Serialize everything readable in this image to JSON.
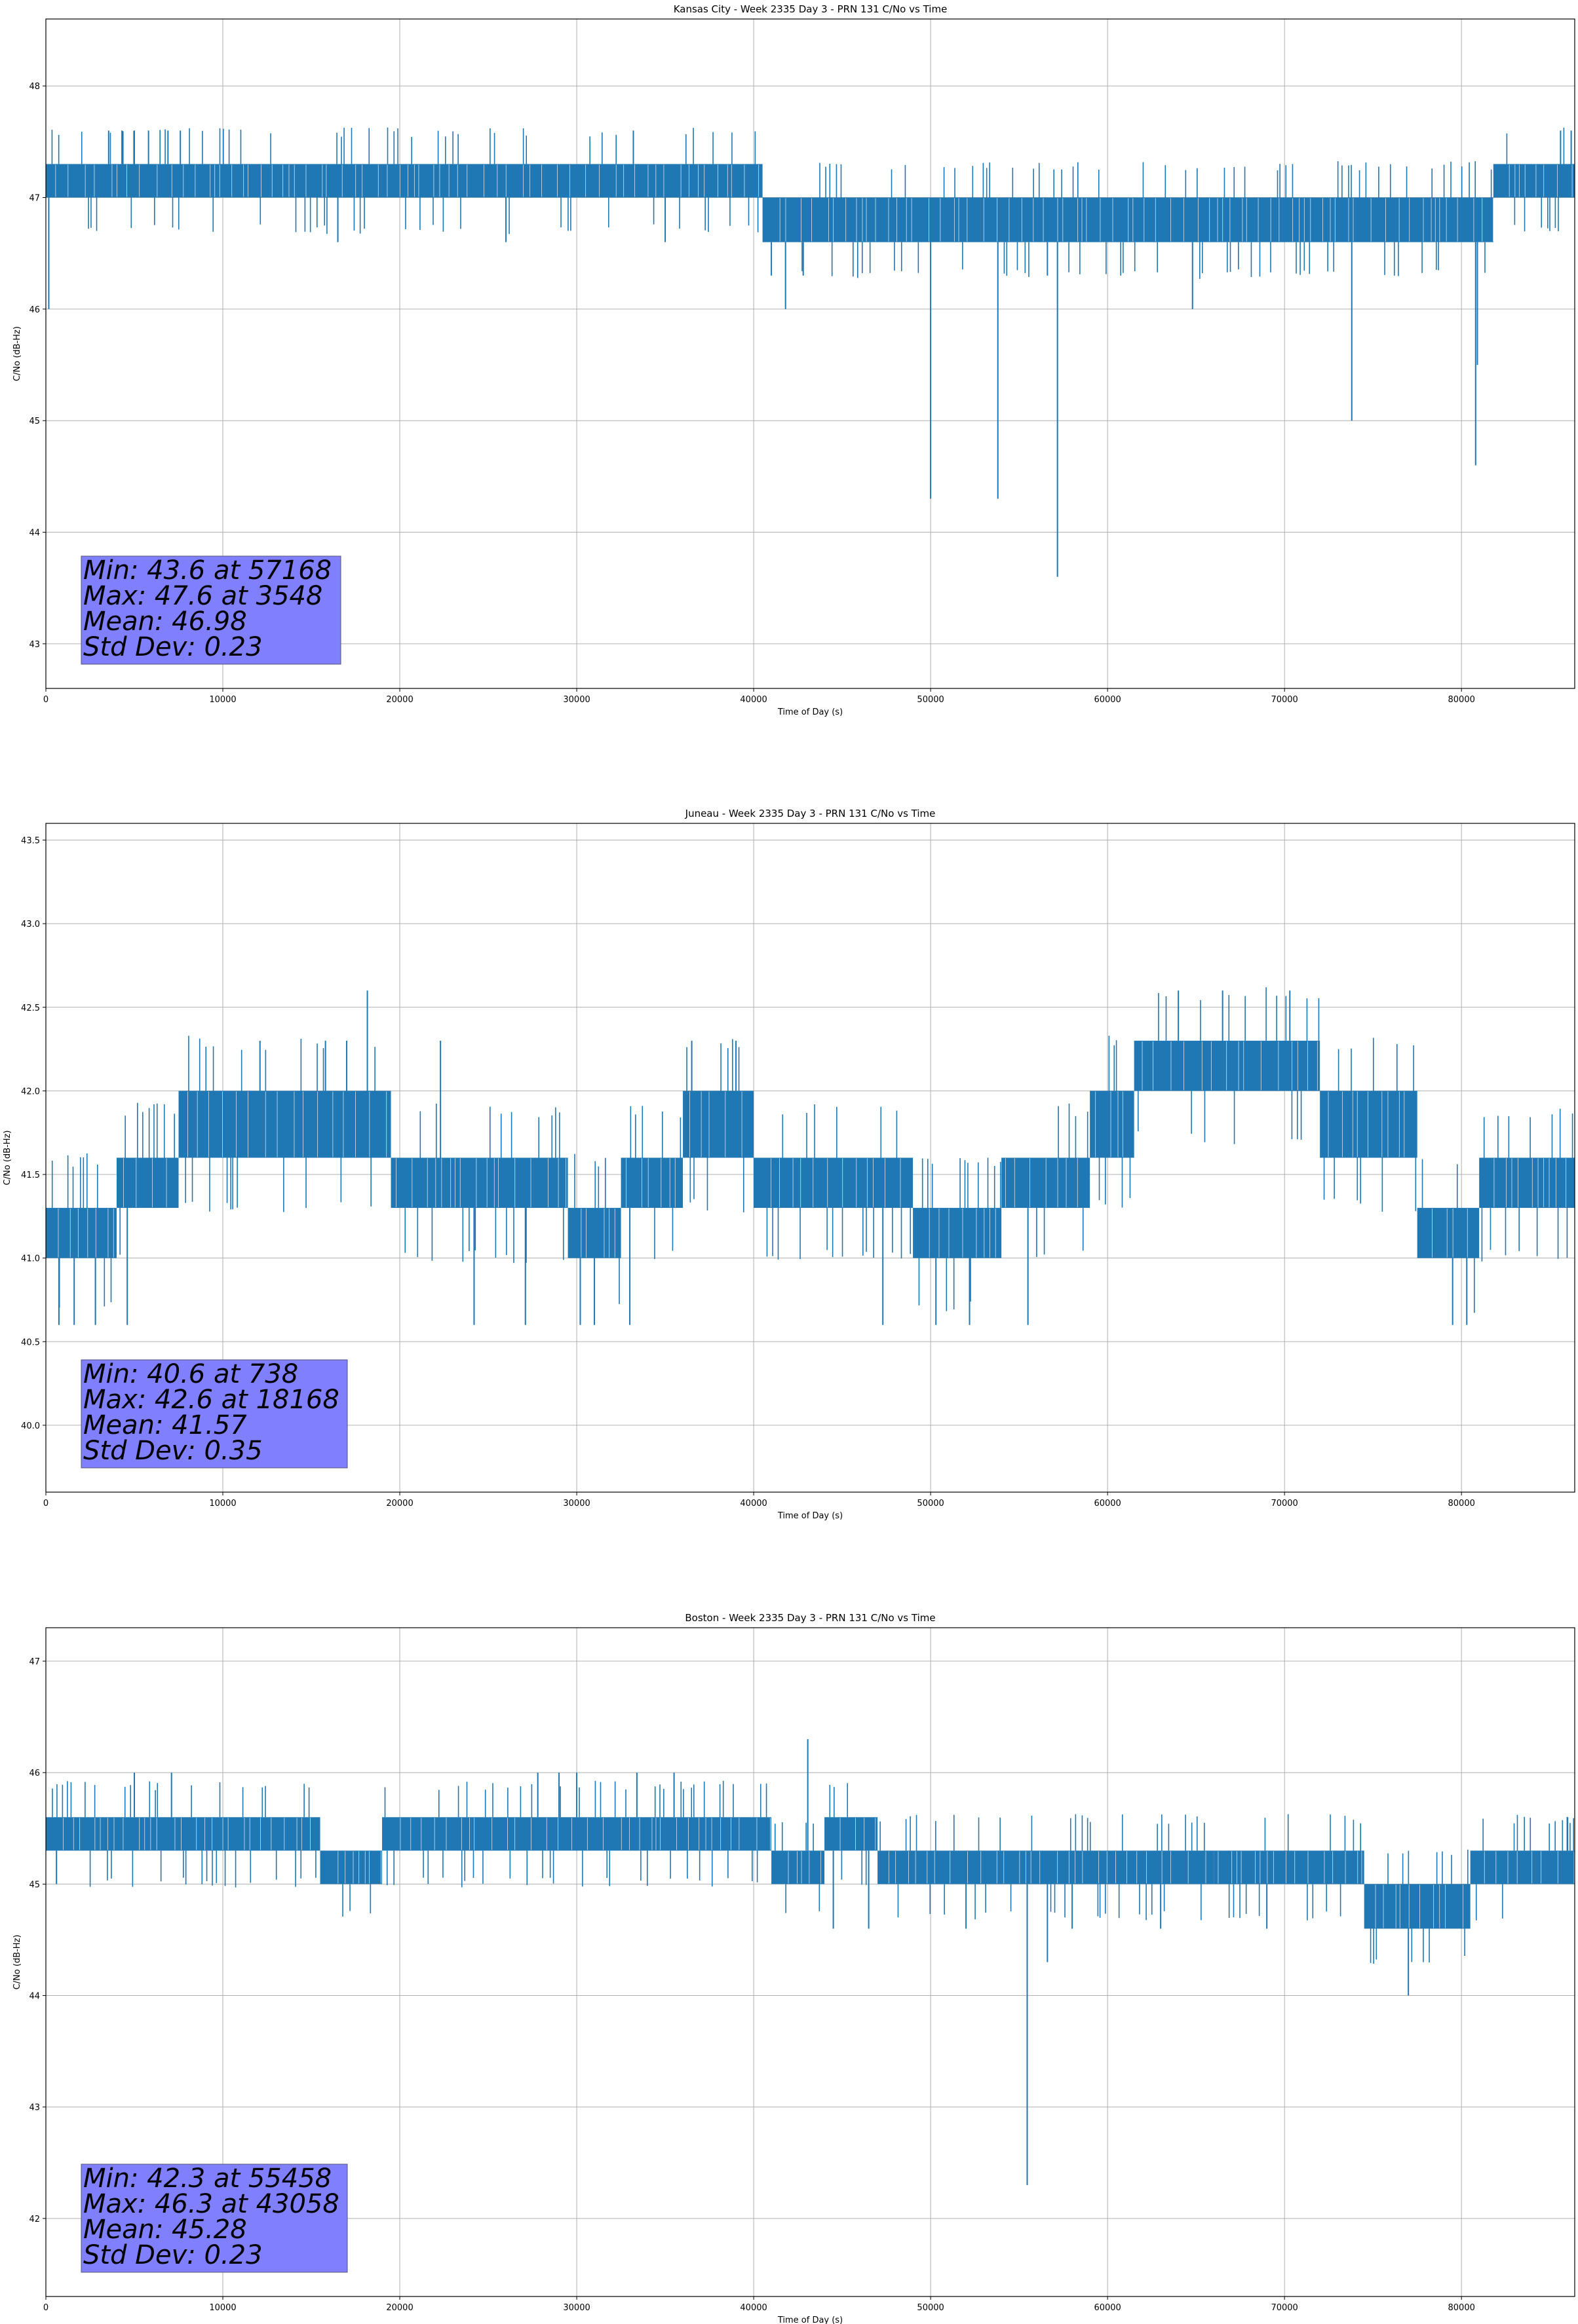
{
  "colors": {
    "series": "#1f77b4",
    "stats_box": "#8080ff",
    "grid": "#b0b0b0"
  },
  "chart_data": [
    {
      "type": "line",
      "title": "Kansas City - Week 2335 Day 3 - PRN 131 C/No vs Time",
      "xlabel": "Time of Day (s)",
      "ylabel": "C/No (dB-Hz)",
      "xlim": [
        0,
        86400
      ],
      "ylim": [
        42.6,
        48.6
      ],
      "xticks": [
        0,
        10000,
        20000,
        30000,
        40000,
        50000,
        60000,
        70000,
        80000
      ],
      "xtick_labels": [
        "0",
        "10000",
        "20000",
        "30000",
        "40000",
        "50000",
        "60000",
        "70000",
        "80000"
      ],
      "yticks": [
        43,
        44,
        45,
        46,
        47,
        48
      ],
      "ytick_labels": [
        "43",
        "44",
        "45",
        "46",
        "47",
        "48"
      ],
      "grid": true,
      "band_segments": [
        {
          "x0": 0,
          "x1": 40500,
          "lo": 47.0,
          "hi": 47.3
        },
        {
          "x0": 40500,
          "x1": 81800,
          "lo": 46.6,
          "hi": 47.0
        },
        {
          "x0": 81800,
          "x1": 86400,
          "lo": 47.0,
          "hi": 47.3
        }
      ],
      "spikes": [
        {
          "x": 165,
          "y": 46.0
        },
        {
          "x": 3548,
          "y": 47.6
        },
        {
          "x": 4300,
          "y": 47.6
        },
        {
          "x": 5000,
          "y": 47.6
        },
        {
          "x": 5800,
          "y": 47.6
        },
        {
          "x": 6900,
          "y": 47.6
        },
        {
          "x": 7600,
          "y": 47.6
        },
        {
          "x": 33200,
          "y": 47.6
        },
        {
          "x": 41000,
          "y": 46.3
        },
        {
          "x": 41800,
          "y": 46.0
        },
        {
          "x": 42800,
          "y": 46.3
        },
        {
          "x": 50000,
          "y": 44.3
        },
        {
          "x": 53800,
          "y": 44.3
        },
        {
          "x": 57168,
          "y": 43.6
        },
        {
          "x": 56600,
          "y": 46.3
        },
        {
          "x": 64800,
          "y": 46.0
        },
        {
          "x": 73800,
          "y": 45.0
        },
        {
          "x": 80800,
          "y": 44.6
        },
        {
          "x": 80900,
          "y": 45.5
        },
        {
          "x": 85600,
          "y": 47.6
        },
        {
          "x": 86200,
          "y": 47.6
        },
        {
          "x": 16500,
          "y": 46.6
        },
        {
          "x": 26000,
          "y": 46.6
        },
        {
          "x": 35000,
          "y": 46.6
        }
      ],
      "stats": [
        "Min: 43.6 at 57168",
        "Max: 47.6 at 3548",
        "Mean: 46.98",
        "Std Dev: 0.23"
      ]
    },
    {
      "type": "line",
      "title": "Juneau - Week 2335 Day 3 - PRN 131 C/No vs Time",
      "xlabel": "Time of Day (s)",
      "ylabel": "C/No (dB-Hz)",
      "xlim": [
        0,
        86400
      ],
      "ylim": [
        39.6,
        43.6
      ],
      "xticks": [
        0,
        10000,
        20000,
        30000,
        40000,
        50000,
        60000,
        70000,
        80000
      ],
      "xtick_labels": [
        "0",
        "10000",
        "20000",
        "30000",
        "40000",
        "50000",
        "60000",
        "70000",
        "80000"
      ],
      "yticks": [
        40.0,
        40.5,
        41.0,
        41.5,
        42.0,
        42.5,
        43.0,
        43.5
      ],
      "ytick_labels": [
        "40.0",
        "40.5",
        "41.0",
        "41.5",
        "42.0",
        "42.5",
        "43.0",
        "43.5"
      ],
      "grid": true,
      "band_segments": [
        {
          "x0": 0,
          "x1": 4000,
          "lo": 41.0,
          "hi": 41.3
        },
        {
          "x0": 4000,
          "x1": 7500,
          "lo": 41.3,
          "hi": 41.6
        },
        {
          "x0": 7500,
          "x1": 19500,
          "lo": 41.6,
          "hi": 42.0
        },
        {
          "x0": 19500,
          "x1": 29500,
          "lo": 41.3,
          "hi": 41.6
        },
        {
          "x0": 29500,
          "x1": 32500,
          "lo": 41.0,
          "hi": 41.3
        },
        {
          "x0": 32500,
          "x1": 36000,
          "lo": 41.3,
          "hi": 41.6
        },
        {
          "x0": 36000,
          "x1": 40000,
          "lo": 41.6,
          "hi": 42.0
        },
        {
          "x0": 40000,
          "x1": 49000,
          "lo": 41.3,
          "hi": 41.6
        },
        {
          "x0": 49000,
          "x1": 54000,
          "lo": 41.0,
          "hi": 41.3
        },
        {
          "x0": 54000,
          "x1": 59000,
          "lo": 41.3,
          "hi": 41.6
        },
        {
          "x0": 59000,
          "x1": 61500,
          "lo": 41.6,
          "hi": 42.0
        },
        {
          "x0": 61500,
          "x1": 72000,
          "lo": 42.0,
          "hi": 42.3
        },
        {
          "x0": 72000,
          "x1": 77500,
          "lo": 41.6,
          "hi": 42.0
        },
        {
          "x0": 77500,
          "x1": 81000,
          "lo": 41.0,
          "hi": 41.3
        },
        {
          "x0": 81000,
          "x1": 86400,
          "lo": 41.3,
          "hi": 41.6
        }
      ],
      "spikes": [
        {
          "x": 738,
          "y": 40.6
        },
        {
          "x": 1600,
          "y": 40.6
        },
        {
          "x": 2800,
          "y": 40.6
        },
        {
          "x": 4600,
          "y": 40.6
        },
        {
          "x": 12100,
          "y": 42.3
        },
        {
          "x": 15800,
          "y": 42.3
        },
        {
          "x": 17000,
          "y": 42.3
        },
        {
          "x": 18168,
          "y": 42.6
        },
        {
          "x": 22300,
          "y": 42.3
        },
        {
          "x": 24200,
          "y": 40.6
        },
        {
          "x": 27100,
          "y": 40.6
        },
        {
          "x": 30200,
          "y": 40.6
        },
        {
          "x": 31000,
          "y": 40.6
        },
        {
          "x": 33000,
          "y": 40.6
        },
        {
          "x": 36500,
          "y": 42.3
        },
        {
          "x": 39000,
          "y": 42.3
        },
        {
          "x": 47300,
          "y": 40.6
        },
        {
          "x": 50300,
          "y": 40.6
        },
        {
          "x": 52200,
          "y": 40.6
        },
        {
          "x": 55500,
          "y": 40.6
        },
        {
          "x": 64000,
          "y": 42.6
        },
        {
          "x": 66500,
          "y": 42.6
        },
        {
          "x": 70300,
          "y": 42.6
        },
        {
          "x": 79500,
          "y": 40.6
        },
        {
          "x": 80300,
          "y": 40.6
        }
      ],
      "stats": [
        "Min: 40.6 at 738",
        "Max: 42.6 at 18168",
        "Mean: 41.57",
        "Std Dev: 0.35"
      ]
    },
    {
      "type": "line",
      "title": "Boston - Week 2335 Day 3 - PRN 131 C/No vs Time",
      "xlabel": "Time of Day (s)",
      "ylabel": "C/No (dB-Hz)",
      "xlim": [
        0,
        86400
      ],
      "ylim": [
        41.3,
        47.3
      ],
      "xticks": [
        0,
        10000,
        20000,
        30000,
        40000,
        50000,
        60000,
        70000,
        80000
      ],
      "xtick_labels": [
        "0",
        "10000",
        "20000",
        "30000",
        "40000",
        "50000",
        "60000",
        "70000",
        "80000"
      ],
      "yticks": [
        42,
        43,
        44,
        45,
        46,
        47
      ],
      "ytick_labels": [
        "42",
        "43",
        "44",
        "45",
        "46",
        "47"
      ],
      "grid": true,
      "band_segments": [
        {
          "x0": 0,
          "x1": 15500,
          "lo": 45.3,
          "hi": 45.6
        },
        {
          "x0": 15500,
          "x1": 19000,
          "lo": 45.0,
          "hi": 45.3
        },
        {
          "x0": 19000,
          "x1": 41000,
          "lo": 45.3,
          "hi": 45.6
        },
        {
          "x0": 41000,
          "x1": 44000,
          "lo": 45.0,
          "hi": 45.3
        },
        {
          "x0": 44000,
          "x1": 47000,
          "lo": 45.3,
          "hi": 45.6
        },
        {
          "x0": 47000,
          "x1": 66000,
          "lo": 45.0,
          "hi": 45.3
        },
        {
          "x0": 66000,
          "x1": 74500,
          "lo": 45.0,
          "hi": 45.3
        },
        {
          "x0": 74500,
          "x1": 80500,
          "lo": 44.6,
          "hi": 45.0
        },
        {
          "x0": 80500,
          "x1": 86400,
          "lo": 45.0,
          "hi": 45.3
        }
      ],
      "spikes": [
        {
          "x": 600,
          "y": 45.0
        },
        {
          "x": 5000,
          "y": 46.0
        },
        {
          "x": 7100,
          "y": 46.0
        },
        {
          "x": 27800,
          "y": 46.0
        },
        {
          "x": 29000,
          "y": 46.0
        },
        {
          "x": 30000,
          "y": 46.0
        },
        {
          "x": 33400,
          "y": 46.0
        },
        {
          "x": 35500,
          "y": 46.0
        },
        {
          "x": 43058,
          "y": 46.3
        },
        {
          "x": 44500,
          "y": 44.6
        },
        {
          "x": 46500,
          "y": 44.6
        },
        {
          "x": 55458,
          "y": 42.3
        },
        {
          "x": 56600,
          "y": 44.3
        },
        {
          "x": 52000,
          "y": 44.6
        },
        {
          "x": 58000,
          "y": 44.6
        },
        {
          "x": 63000,
          "y": 44.6
        },
        {
          "x": 69000,
          "y": 44.6
        },
        {
          "x": 77000,
          "y": 44.0
        },
        {
          "x": 86000,
          "y": 45.6
        }
      ],
      "stats": [
        "Min: 42.3 at 55458",
        "Max: 46.3 at 43058",
        "Mean: 45.28",
        "Std Dev: 0.23"
      ]
    }
  ]
}
